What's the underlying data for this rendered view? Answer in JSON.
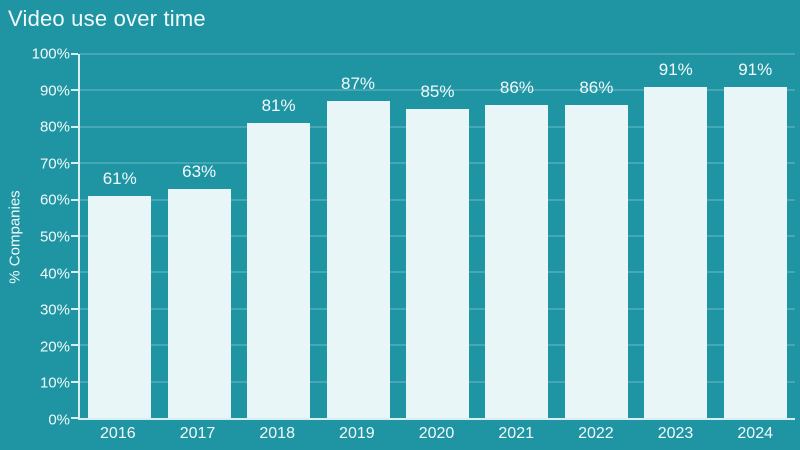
{
  "page": {
    "background": "#1f95a4"
  },
  "chart_data": {
    "type": "bar",
    "title": "Video use over time",
    "xlabel": "",
    "ylabel": "% Companies",
    "categories": [
      "2016",
      "2017",
      "2018",
      "2019",
      "2020",
      "2021",
      "2022",
      "2023",
      "2024"
    ],
    "values": [
      61,
      63,
      81,
      87,
      85,
      86,
      86,
      91,
      91
    ],
    "value_labels": [
      "61%",
      "63%",
      "81%",
      "87%",
      "85%",
      "86%",
      "86%",
      "91%",
      "91%"
    ],
    "ylim": [
      0,
      100
    ],
    "ytick_step": 10,
    "yticks": [
      "0%",
      "10%",
      "20%",
      "30%",
      "40%",
      "50%",
      "60%",
      "70%",
      "80%",
      "90%",
      "100%"
    ],
    "grid": "horizontal",
    "legend": "none",
    "colors": {
      "background": "#1f95a4",
      "bar": "#e9f6f8",
      "grid": "rgba(235,248,250,0.38)",
      "axis": "#d9eef1",
      "text": "#f2fafb"
    }
  }
}
